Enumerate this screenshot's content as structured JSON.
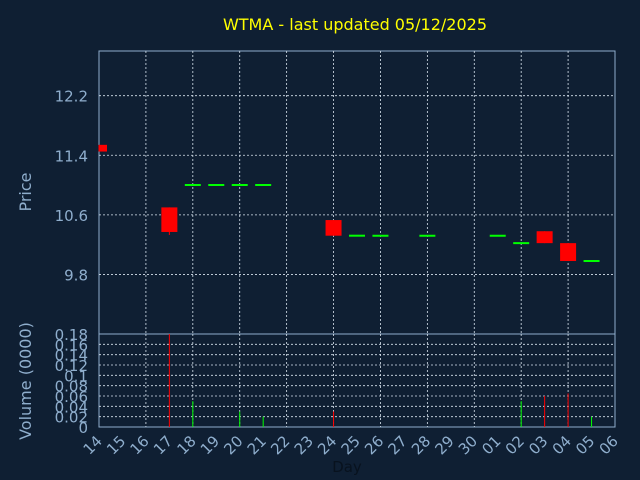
{
  "colors": {
    "background": "#0f1f33",
    "frame": "#8faecd",
    "grid": "#d9e4ef",
    "title": "#ffff00",
    "axis_text": "#8faecd",
    "up": "#00ff00",
    "down": "#ff0000"
  },
  "chart_data": [
    {
      "type": "candlestick",
      "title": "WTMA - last updated 05/12/2025",
      "ylabel": "Price",
      "ylim": [
        9.0,
        12.8
      ],
      "yticks": [
        "9.8",
        "10.6",
        "11.4",
        "12.2"
      ],
      "grid": true,
      "days": [
        "14",
        "15",
        "16",
        "17",
        "18",
        "19",
        "20",
        "21",
        "22",
        "23",
        "24",
        "25",
        "26",
        "27",
        "28",
        "29",
        "30",
        "01",
        "02",
        "03",
        "04",
        "05",
        "06"
      ],
      "candles": [
        {
          "day": "14",
          "open": 11.54,
          "close": 11.45,
          "high": 11.54,
          "low": 11.45
        },
        {
          "day": "17",
          "open": 10.7,
          "close": 10.37,
          "high": 10.7,
          "low": 10.33
        },
        {
          "day": "18",
          "open": 11.0,
          "close": 11.0,
          "high": 11.0,
          "low": 11.0
        },
        {
          "day": "19",
          "open": 11.0,
          "close": 11.0,
          "high": 11.0,
          "low": 11.0
        },
        {
          "day": "20",
          "open": 11.0,
          "close": 11.0,
          "high": 11.0,
          "low": 11.0
        },
        {
          "day": "21",
          "open": 11.0,
          "close": 11.0,
          "high": 11.0,
          "low": 11.0
        },
        {
          "day": "24",
          "open": 10.53,
          "close": 10.32,
          "high": 10.53,
          "low": 10.32
        },
        {
          "day": "25",
          "open": 10.32,
          "close": 10.32,
          "high": 10.32,
          "low": 10.32
        },
        {
          "day": "26",
          "open": 10.32,
          "close": 10.32,
          "high": 10.32,
          "low": 10.32
        },
        {
          "day": "28",
          "open": 10.32,
          "close": 10.32,
          "high": 10.32,
          "low": 10.32
        },
        {
          "day": "01",
          "open": 10.32,
          "close": 10.32,
          "high": 10.32,
          "low": 10.32
        },
        {
          "day": "02",
          "open": 10.22,
          "close": 10.22,
          "high": 10.22,
          "low": 10.22
        },
        {
          "day": "03",
          "open": 10.38,
          "close": 10.22,
          "high": 10.38,
          "low": 10.22
        },
        {
          "day": "04",
          "open": 10.22,
          "close": 9.98,
          "high": 10.22,
          "low": 9.98
        },
        {
          "day": "05",
          "open": 9.98,
          "close": 9.98,
          "high": 9.98,
          "low": 9.98
        }
      ]
    },
    {
      "type": "bar",
      "ylabel": "Volume (0000)",
      "xlabel": "Day",
      "ylim": [
        0,
        0.18
      ],
      "yticks": [
        "0",
        "0.02",
        "0.04",
        "0.06",
        "0.08",
        "0.1",
        "0.12",
        "0.14",
        "0.16",
        "0.18"
      ],
      "categories": [
        "17",
        "18",
        "20",
        "21",
        "24",
        "02",
        "03",
        "04",
        "05"
      ],
      "values": [
        0.18,
        0.05,
        0.03,
        0.02,
        0.03,
        0.05,
        0.06,
        0.065,
        0.02
      ],
      "directions": [
        "down",
        "up",
        "up",
        "up",
        "down",
        "up",
        "down",
        "down",
        "up"
      ]
    }
  ]
}
